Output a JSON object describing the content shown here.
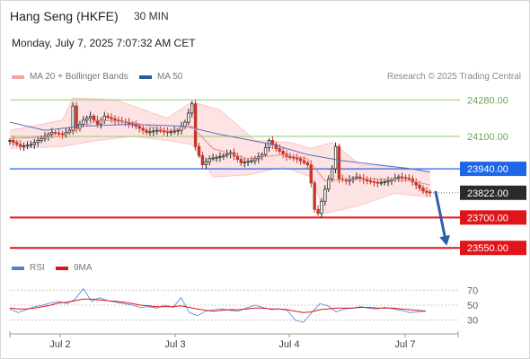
{
  "header": {
    "title": "Hang Seng (HKFE)",
    "timeframe": "30 MIN",
    "datetime": "Monday, July 7, 2025 7:07:32 AM CET"
  },
  "legend": {
    "items": [
      {
        "label": "MA 20 + Bollinger Bands",
        "color": "#f4a3a3"
      },
      {
        "label": "MA 50",
        "color": "#2a5aa0"
      }
    ],
    "credit": "Research © 2025 Trading Central"
  },
  "rsi_legend": {
    "items": [
      {
        "label": "RSI",
        "color": "#4f7fd8"
      },
      {
        "label": "9MA",
        "color": "#e0151a"
      }
    ]
  },
  "chart_data": [
    {
      "type": "line",
      "subtype": "candlestick",
      "price_axis": {
        "ylim": [
          23520,
          24330
        ],
        "ticks": [
          24280,
          24100
        ]
      },
      "x_labels": [
        "Jul 2",
        "Jul 3",
        "Jul 4",
        "Jul 7"
      ],
      "levels": [
        {
          "value": 24280,
          "label": "24280.00",
          "kind": "target",
          "color": "#8fcf6a"
        },
        {
          "value": 24100,
          "label": "24100.00",
          "kind": "target",
          "color": "#8fcf6a"
        },
        {
          "value": 23940,
          "label": "23940.00",
          "kind": "pivot",
          "color": "#1e66e8"
        },
        {
          "value": 23822,
          "label": "23822.00",
          "kind": "last",
          "color": "#2b2b2b"
        },
        {
          "value": 23700,
          "label": "23700.00",
          "kind": "support",
          "color": "#e0151a"
        },
        {
          "value": 23550,
          "label": "23550.00",
          "kind": "support",
          "color": "#e0151a"
        }
      ],
      "close_path": [
        {
          "x": 0,
          "y": 24080
        },
        {
          "x": 3,
          "y": 24050
        },
        {
          "x": 6,
          "y": 24060
        },
        {
          "x": 9,
          "y": 24090
        },
        {
          "x": 12,
          "y": 24120
        },
        {
          "x": 15,
          "y": 24110
        },
        {
          "x": 17,
          "y": 24130
        },
        {
          "x": 18,
          "y": 24250
        },
        {
          "x": 19,
          "y": 24140
        },
        {
          "x": 21,
          "y": 24180
        },
        {
          "x": 23,
          "y": 24200
        },
        {
          "x": 25,
          "y": 24160
        },
        {
          "x": 27,
          "y": 24200
        },
        {
          "x": 30,
          "y": 24180
        },
        {
          "x": 33,
          "y": 24170
        },
        {
          "x": 36,
          "y": 24150
        },
        {
          "x": 39,
          "y": 24120
        },
        {
          "x": 42,
          "y": 24130
        },
        {
          "x": 45,
          "y": 24120
        },
        {
          "x": 48,
          "y": 24130
        },
        {
          "x": 50,
          "y": 24170
        },
        {
          "x": 52,
          "y": 24260
        },
        {
          "x": 53,
          "y": 24050
        },
        {
          "x": 55,
          "y": 23960
        },
        {
          "x": 57,
          "y": 23990
        },
        {
          "x": 60,
          "y": 24000
        },
        {
          "x": 63,
          "y": 24020
        },
        {
          "x": 66,
          "y": 23970
        },
        {
          "x": 69,
          "y": 23980
        },
        {
          "x": 72,
          "y": 24010
        },
        {
          "x": 74,
          "y": 24080
        },
        {
          "x": 76,
          "y": 24040
        },
        {
          "x": 79,
          "y": 24000
        },
        {
          "x": 82,
          "y": 23990
        },
        {
          "x": 85,
          "y": 23960
        },
        {
          "x": 86,
          "y": 23870
        },
        {
          "x": 87,
          "y": 23740
        },
        {
          "x": 88,
          "y": 23720
        },
        {
          "x": 90,
          "y": 23840
        },
        {
          "x": 92,
          "y": 23940
        },
        {
          "x": 93,
          "y": 24050
        },
        {
          "x": 94,
          "y": 23890
        },
        {
          "x": 96,
          "y": 23880
        },
        {
          "x": 99,
          "y": 23900
        },
        {
          "x": 102,
          "y": 23880
        },
        {
          "x": 105,
          "y": 23870
        },
        {
          "x": 108,
          "y": 23880
        },
        {
          "x": 111,
          "y": 23900
        },
        {
          "x": 114,
          "y": 23890
        },
        {
          "x": 116,
          "y": 23860
        },
        {
          "x": 118,
          "y": 23830
        },
        {
          "x": 120,
          "y": 23822
        }
      ],
      "ma20_path": [
        {
          "x": 0,
          "y": 24090
        },
        {
          "x": 15,
          "y": 24100
        },
        {
          "x": 25,
          "y": 24180
        },
        {
          "x": 35,
          "y": 24170
        },
        {
          "x": 45,
          "y": 24130
        },
        {
          "x": 52,
          "y": 24150
        },
        {
          "x": 58,
          "y": 24040
        },
        {
          "x": 68,
          "y": 23990
        },
        {
          "x": 78,
          "y": 24010
        },
        {
          "x": 85,
          "y": 23990
        },
        {
          "x": 90,
          "y": 23880
        },
        {
          "x": 98,
          "y": 23890
        },
        {
          "x": 108,
          "y": 23890
        },
        {
          "x": 115,
          "y": 23880
        },
        {
          "x": 120,
          "y": 23860
        }
      ],
      "band_upper": [
        {
          "x": 0,
          "y": 24130
        },
        {
          "x": 15,
          "y": 24180
        },
        {
          "x": 18,
          "y": 24290
        },
        {
          "x": 30,
          "y": 24280
        },
        {
          "x": 45,
          "y": 24190
        },
        {
          "x": 52,
          "y": 24270
        },
        {
          "x": 60,
          "y": 24230
        },
        {
          "x": 70,
          "y": 24080
        },
        {
          "x": 80,
          "y": 24070
        },
        {
          "x": 86,
          "y": 24040
        },
        {
          "x": 92,
          "y": 24070
        },
        {
          "x": 100,
          "y": 23960
        },
        {
          "x": 110,
          "y": 23950
        },
        {
          "x": 120,
          "y": 23920
        }
      ],
      "band_lower": [
        {
          "x": 0,
          "y": 24040
        },
        {
          "x": 15,
          "y": 24050
        },
        {
          "x": 25,
          "y": 24080
        },
        {
          "x": 35,
          "y": 24100
        },
        {
          "x": 45,
          "y": 24080
        },
        {
          "x": 52,
          "y": 24060
        },
        {
          "x": 58,
          "y": 23900
        },
        {
          "x": 68,
          "y": 23910
        },
        {
          "x": 78,
          "y": 23950
        },
        {
          "x": 86,
          "y": 23900
        },
        {
          "x": 90,
          "y": 23720
        },
        {
          "x": 100,
          "y": 23760
        },
        {
          "x": 110,
          "y": 23820
        },
        {
          "x": 120,
          "y": 23800
        }
      ],
      "ma50_path": [
        {
          "x": 0,
          "y": 24170
        },
        {
          "x": 10,
          "y": 24130
        },
        {
          "x": 20,
          "y": 24150
        },
        {
          "x": 35,
          "y": 24160
        },
        {
          "x": 50,
          "y": 24150
        },
        {
          "x": 60,
          "y": 24110
        },
        {
          "x": 75,
          "y": 24060
        },
        {
          "x": 85,
          "y": 24010
        },
        {
          "x": 95,
          "y": 23980
        },
        {
          "x": 105,
          "y": 23960
        },
        {
          "x": 115,
          "y": 23940
        },
        {
          "x": 120,
          "y": 23925
        }
      ],
      "forecast_arrow": {
        "from": {
          "x": 120,
          "y": 23830
        },
        "to": {
          "x": 127,
          "y": 23560
        }
      }
    },
    {
      "type": "line",
      "subtype": "rsi",
      "ylim": [
        20,
        80
      ],
      "ticks": [
        70,
        50,
        30
      ],
      "series": [
        {
          "name": "RSI",
          "values": [
            45,
            40,
            44,
            48,
            50,
            53,
            55,
            52,
            58,
            72,
            55,
            60,
            56,
            54,
            52,
            50,
            47,
            48,
            46,
            50,
            47,
            60,
            40,
            36,
            42,
            44,
            45,
            43,
            42,
            46,
            50,
            47,
            44,
            45,
            43,
            30,
            27,
            40,
            52,
            49,
            41,
            45,
            46,
            48,
            46,
            45,
            47,
            45,
            43,
            40,
            41,
            42
          ]
        },
        {
          "name": "9MA",
          "values": [
            46,
            45,
            45,
            46,
            48,
            50,
            53,
            54,
            56,
            58,
            58,
            57,
            56,
            55,
            54,
            52,
            50,
            49,
            48,
            48,
            48,
            49,
            47,
            45,
            43,
            42,
            43,
            44,
            44,
            45,
            46,
            46,
            45,
            45,
            44,
            42,
            40,
            41,
            44,
            45,
            46,
            46,
            46,
            47,
            47,
            46,
            46,
            46,
            45,
            44,
            43,
            42
          ]
        }
      ]
    }
  ]
}
